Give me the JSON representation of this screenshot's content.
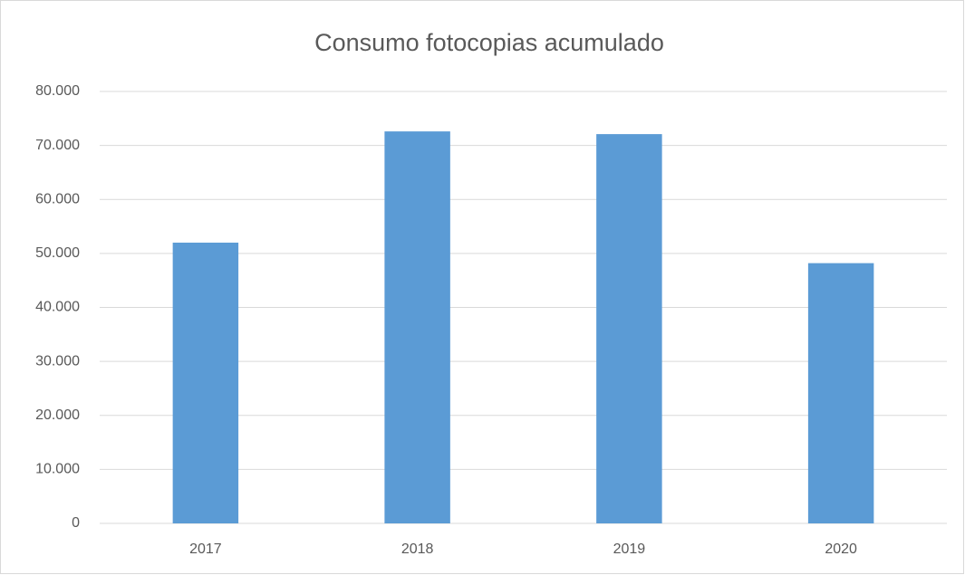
{
  "chart_data": {
    "type": "bar",
    "title": "Consumo fotocopias acumulado",
    "categories": [
      "2017",
      "2018",
      "2019",
      "2020"
    ],
    "values": [
      52000,
      72600,
      72100,
      48200
    ],
    "color": "#5b9bd5",
    "ylim": [
      0,
      80000
    ],
    "yticks": [
      0,
      {
        "value": 10000,
        "label": "10.000"
      },
      {
        "value": 20000,
        "label": "20.000"
      },
      {
        "value": 30000,
        "label": "30.000"
      },
      {
        "value": 40000,
        "label": "40.000"
      },
      {
        "value": 50000,
        "label": "50.000"
      },
      {
        "value": 60000,
        "label": "60.000"
      },
      {
        "value": 70000,
        "label": "70.000"
      },
      {
        "value": 80000,
        "label": "80.000"
      }
    ],
    "grid": true
  }
}
